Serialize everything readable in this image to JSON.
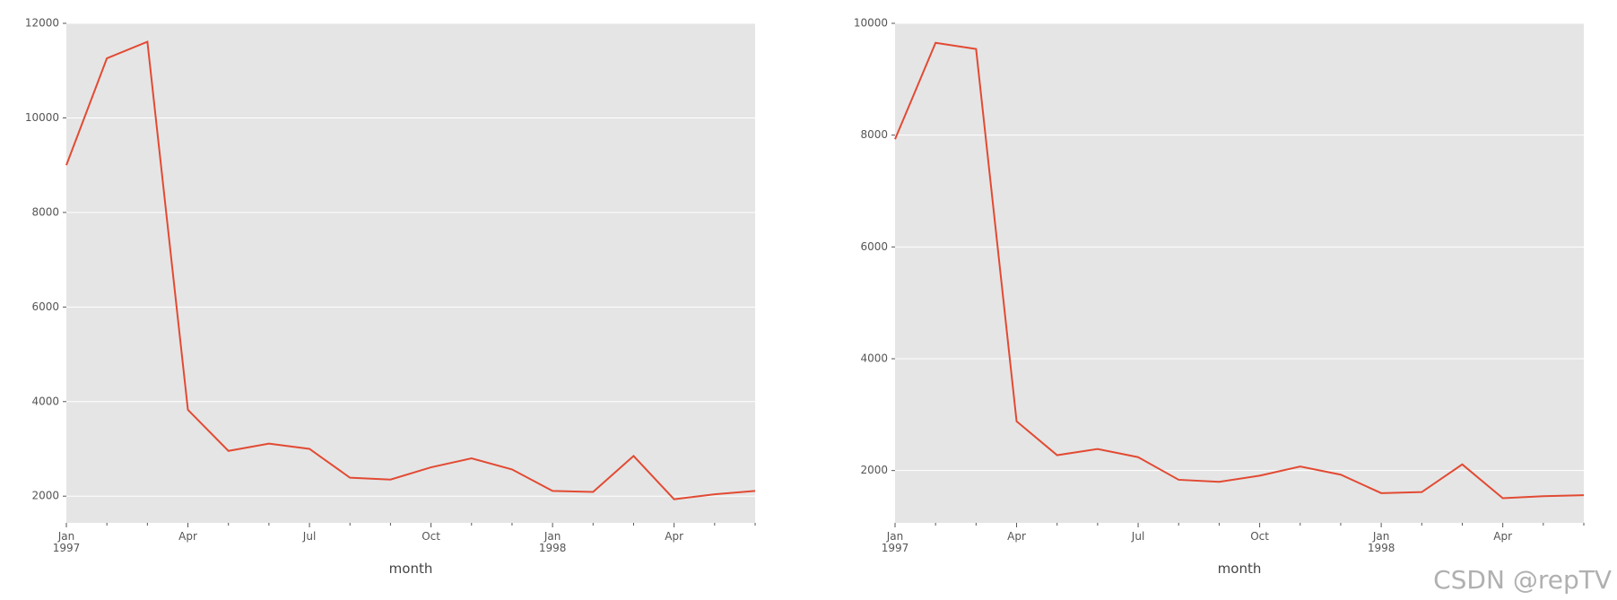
{
  "chart_data": [
    {
      "type": "line",
      "xlabel": "month",
      "color": "#e24a33",
      "grid": true,
      "categories": [
        "Jan\n1997",
        null,
        null,
        "Apr",
        null,
        null,
        "Jul",
        null,
        null,
        "Oct",
        null,
        null,
        "Jan\n1998",
        null,
        null,
        "Apr",
        null,
        null
      ],
      "values": [
        9000,
        11260,
        11610,
        3826,
        2957,
        3110,
        3000,
        2390,
        2350,
        2610,
        2800,
        2565,
        2110,
        2090,
        2850,
        1935,
        2040,
        2110
      ],
      "ylim": [
        1435,
        12000
      ],
      "yticks": [
        2000,
        4000,
        6000,
        8000,
        10000,
        12000
      ]
    },
    {
      "type": "line",
      "xlabel": "month",
      "color": "#e24a33",
      "grid": true,
      "categories": [
        "Jan\n1997",
        null,
        null,
        "Apr",
        null,
        null,
        "Jul",
        null,
        null,
        "Oct",
        null,
        null,
        "Jan\n1998",
        null,
        null,
        "Apr",
        null,
        null
      ],
      "values": [
        7927,
        9651,
        9541,
        2881,
        2275,
        2385,
        2239,
        1835,
        1798,
        1908,
        2073,
        1927,
        1596,
        1615,
        2110,
        1505,
        1541,
        1560
      ],
      "ylim": [
        1064,
        10000
      ],
      "yticks": [
        2000,
        4000,
        6000,
        8000,
        10000
      ]
    }
  ],
  "watermark": "CSDN @repTV"
}
